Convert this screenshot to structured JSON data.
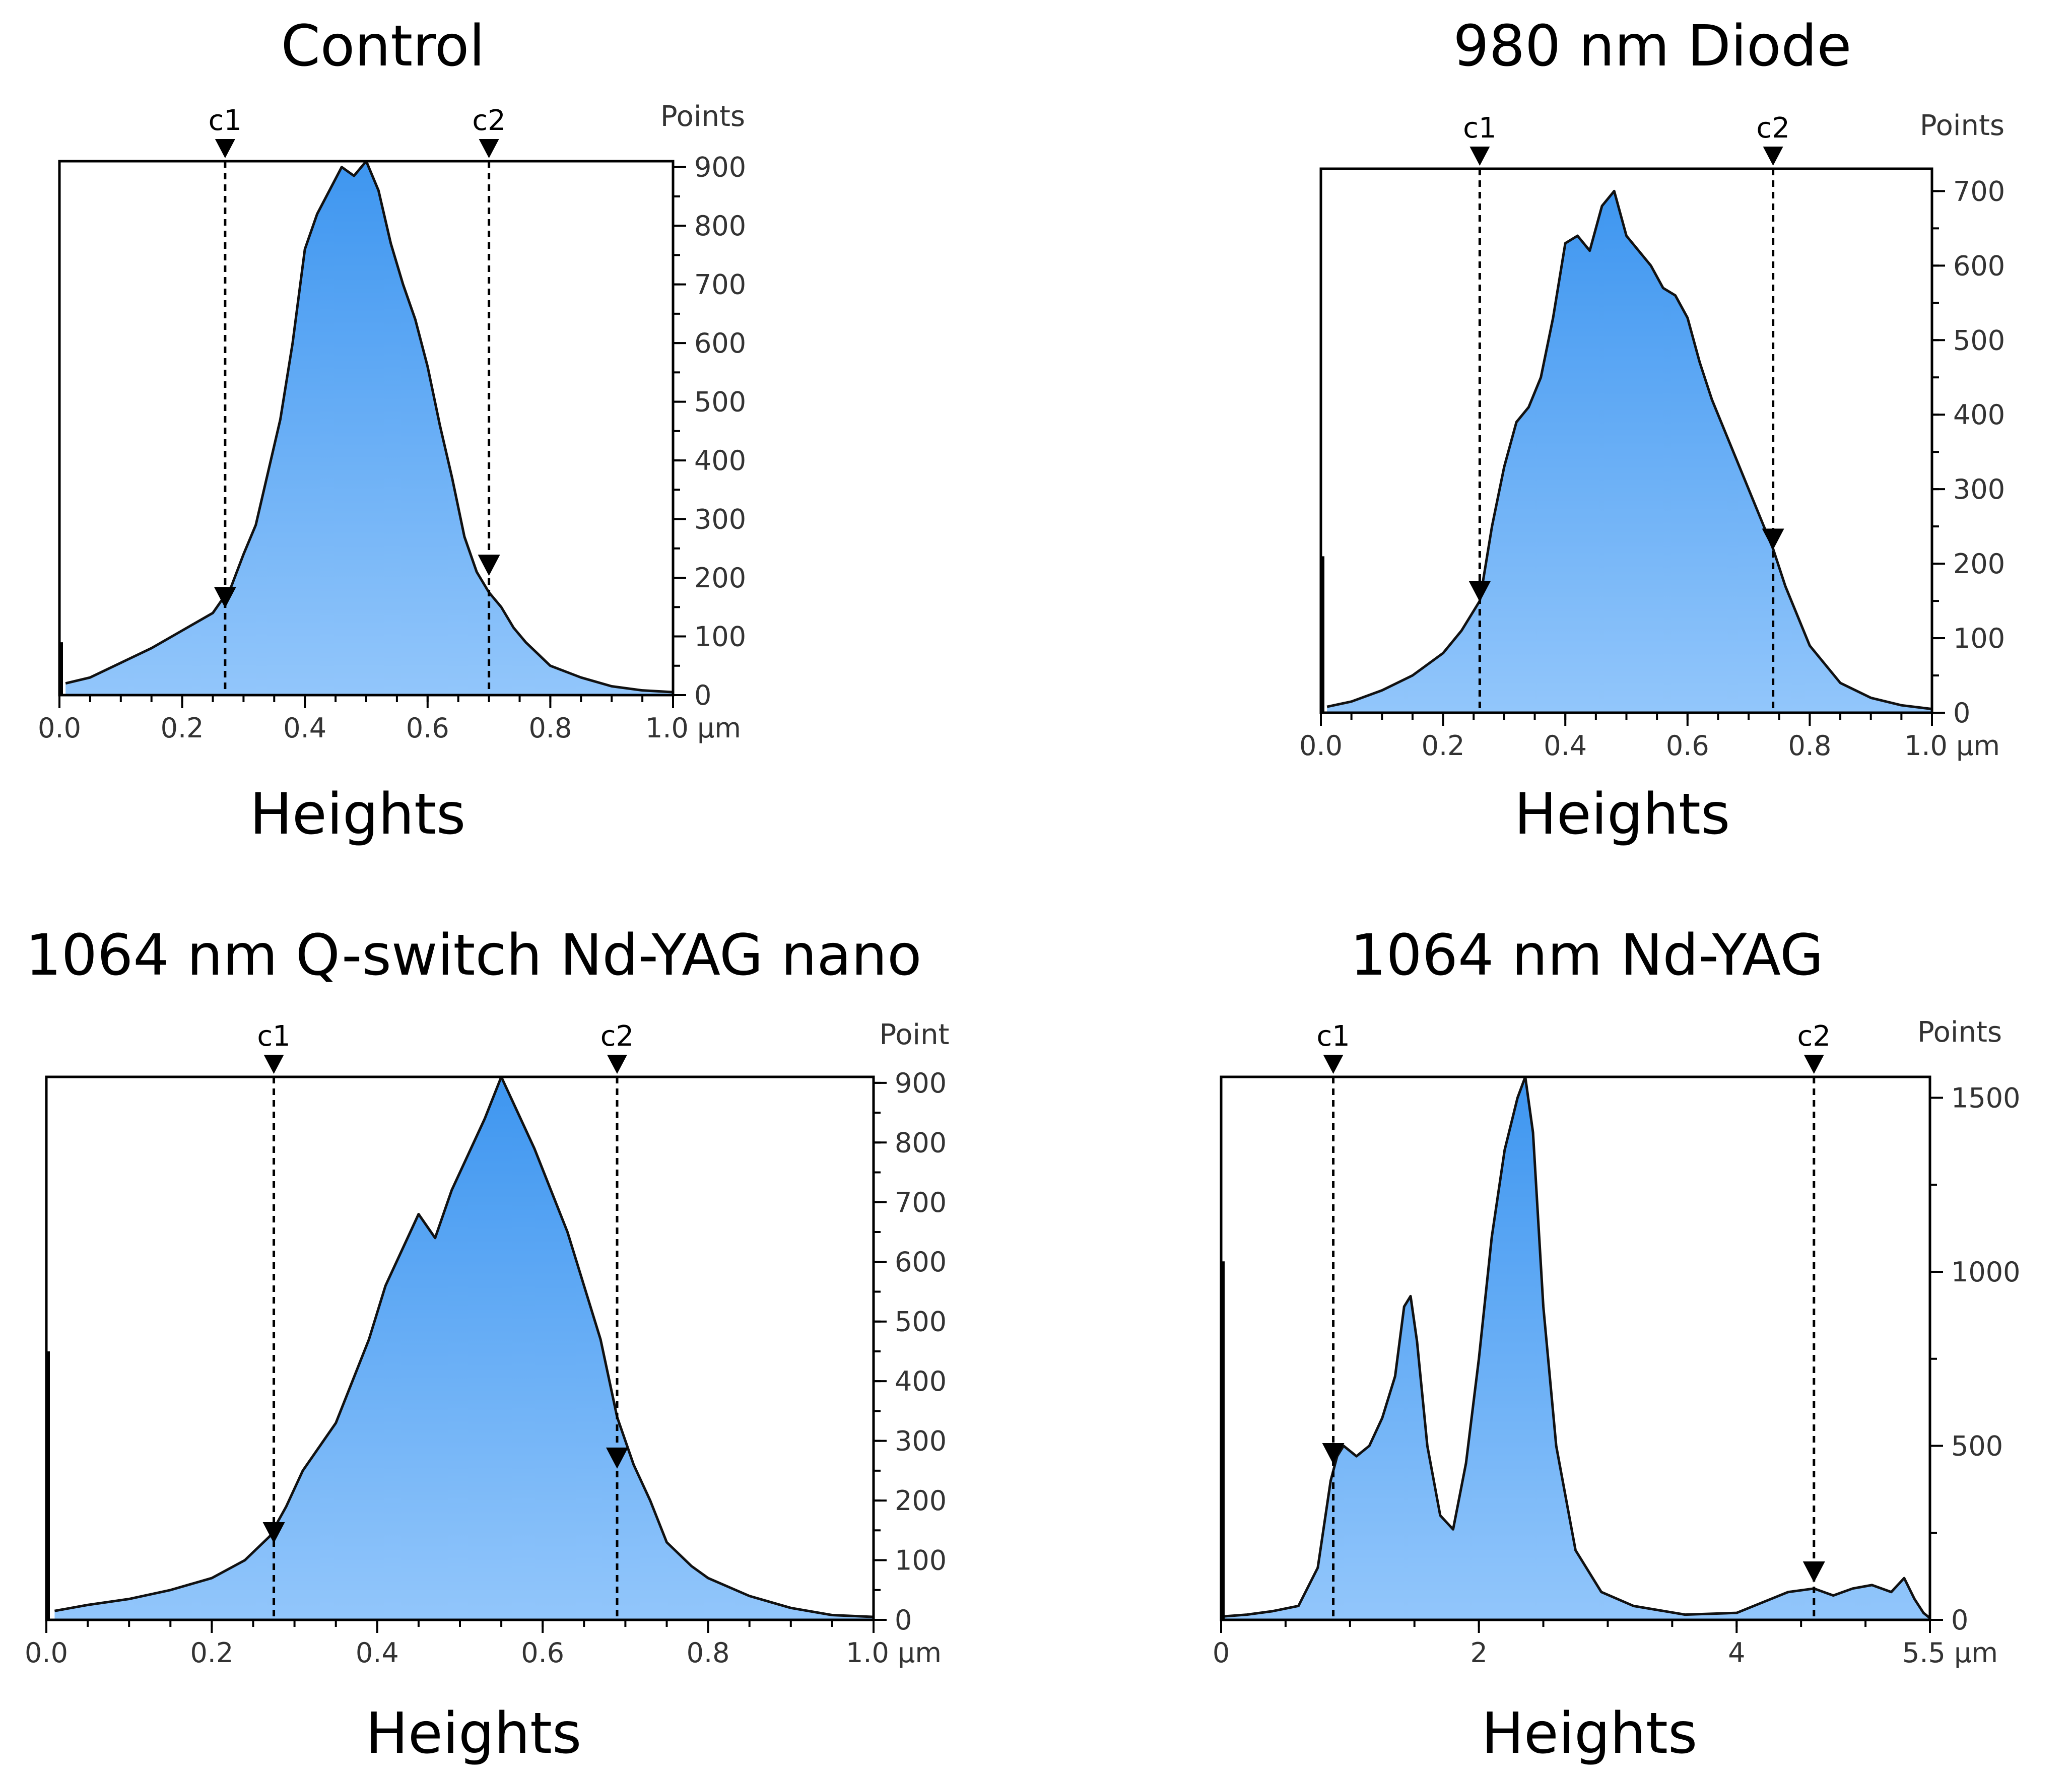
{
  "colors": {
    "fill_top": "#3e96f0",
    "fill_bottom": "#92c6fb",
    "line": "#111111"
  },
  "chart_data": [
    {
      "type": "area",
      "title": "Control",
      "xlabel": "Heights",
      "ylabel": "Points",
      "x_unit": "µm",
      "xlim": [
        0,
        1.0
      ],
      "ylim": [
        0,
        910
      ],
      "x_ticks": [
        "0.0",
        "0.2",
        "0.4",
        "0.6",
        "0.8",
        "1.0"
      ],
      "y_ticks": [
        "0",
        "100",
        "200",
        "300",
        "400",
        "500",
        "600",
        "700",
        "800",
        "900"
      ],
      "spike": [
        0.0,
        90
      ],
      "x": [
        0.01,
        0.05,
        0.1,
        0.15,
        0.2,
        0.25,
        0.28,
        0.3,
        0.32,
        0.34,
        0.36,
        0.38,
        0.4,
        0.42,
        0.44,
        0.46,
        0.48,
        0.5,
        0.52,
        0.54,
        0.56,
        0.58,
        0.6,
        0.62,
        0.64,
        0.66,
        0.68,
        0.7,
        0.72,
        0.74,
        0.76,
        0.78,
        0.8,
        0.85,
        0.9,
        0.95,
        1.0
      ],
      "values": [
        20,
        30,
        55,
        80,
        110,
        140,
        185,
        240,
        290,
        380,
        470,
        600,
        760,
        820,
        860,
        900,
        885,
        910,
        860,
        770,
        700,
        640,
        560,
        460,
        370,
        270,
        210,
        175,
        150,
        115,
        90,
        70,
        50,
        30,
        15,
        8,
        5
      ],
      "cursors": [
        {
          "label": "c1",
          "x": 0.27,
          "y": 150
        },
        {
          "label": "c2",
          "x": 0.7,
          "y": 205
        }
      ]
    },
    {
      "type": "area",
      "title": "980 nm Diode",
      "xlabel": "Heights",
      "ylabel": "Points",
      "x_unit": "µm",
      "xlim": [
        0,
        1.0
      ],
      "ylim": [
        0,
        730
      ],
      "x_ticks": [
        "0.0",
        "0.2",
        "0.4",
        "0.6",
        "0.8",
        "1.0"
      ],
      "y_ticks": [
        "0",
        "100",
        "200",
        "300",
        "400",
        "500",
        "600",
        "700"
      ],
      "spike": [
        0.0,
        210
      ],
      "x": [
        0.01,
        0.05,
        0.1,
        0.15,
        0.2,
        0.23,
        0.26,
        0.28,
        0.3,
        0.32,
        0.34,
        0.36,
        0.38,
        0.4,
        0.42,
        0.44,
        0.46,
        0.48,
        0.5,
        0.52,
        0.54,
        0.56,
        0.58,
        0.6,
        0.62,
        0.64,
        0.66,
        0.68,
        0.7,
        0.72,
        0.74,
        0.76,
        0.78,
        0.8,
        0.85,
        0.9,
        0.95,
        1.0
      ],
      "values": [
        8,
        15,
        30,
        50,
        80,
        110,
        150,
        250,
        330,
        390,
        410,
        450,
        530,
        630,
        640,
        620,
        680,
        700,
        640,
        620,
        600,
        570,
        560,
        530,
        470,
        420,
        380,
        340,
        300,
        260,
        220,
        170,
        130,
        90,
        40,
        20,
        10,
        5
      ],
      "cursors": [
        {
          "label": "c1",
          "x": 0.26,
          "y": 150
        },
        {
          "label": "c2",
          "x": 0.74,
          "y": 220
        }
      ]
    },
    {
      "type": "area",
      "title": "1064 nm Q-switch Nd-YAG nano",
      "xlabel": "Heights",
      "ylabel": "Point",
      "x_unit": "µm",
      "xlim": [
        0,
        1.0
      ],
      "ylim": [
        0,
        910
      ],
      "x_ticks": [
        "0.0",
        "0.2",
        "0.4",
        "0.6",
        "0.8",
        "1.0"
      ],
      "y_ticks": [
        "0",
        "100",
        "200",
        "300",
        "400",
        "500",
        "600",
        "700",
        "800",
        "900"
      ],
      "spike": [
        0.0,
        450
      ],
      "x": [
        0.01,
        0.05,
        0.1,
        0.15,
        0.2,
        0.24,
        0.27,
        0.29,
        0.31,
        0.33,
        0.35,
        0.37,
        0.39,
        0.41,
        0.43,
        0.45,
        0.47,
        0.49,
        0.51,
        0.53,
        0.55,
        0.57,
        0.59,
        0.61,
        0.63,
        0.65,
        0.67,
        0.69,
        0.71,
        0.73,
        0.75,
        0.78,
        0.8,
        0.85,
        0.9,
        0.95,
        1.0
      ],
      "values": [
        15,
        25,
        35,
        50,
        70,
        100,
        140,
        190,
        250,
        290,
        330,
        400,
        470,
        560,
        620,
        680,
        640,
        720,
        780,
        840,
        910,
        850,
        790,
        720,
        650,
        560,
        470,
        340,
        260,
        200,
        130,
        90,
        70,
        40,
        20,
        8,
        5
      ],
      "cursors": [
        {
          "label": "c1",
          "x": 0.275,
          "y": 130
        },
        {
          "label": "c2",
          "x": 0.69,
          "y": 255
        }
      ]
    },
    {
      "type": "area",
      "title": "1064 nm Nd-YAG",
      "xlabel": "Heights",
      "ylabel": "Points",
      "x_unit": "µm",
      "xlim": [
        0,
        5.5
      ],
      "ylim": [
        0,
        1560
      ],
      "x_ticks": [
        "0",
        "2",
        "4",
        "5.5"
      ],
      "x_tick_values": [
        0,
        2,
        4,
        5.5
      ],
      "y_ticks": [
        "0",
        "500",
        "1000",
        "1500"
      ],
      "spike": [
        0.0,
        1030
      ],
      "x": [
        0.02,
        0.2,
        0.4,
        0.6,
        0.75,
        0.85,
        0.9,
        0.95,
        1.05,
        1.15,
        1.25,
        1.35,
        1.42,
        1.47,
        1.52,
        1.6,
        1.7,
        1.8,
        1.9,
        2.0,
        2.1,
        2.2,
        2.3,
        2.36,
        2.42,
        2.5,
        2.6,
        2.75,
        2.95,
        3.2,
        3.6,
        4.0,
        4.2,
        4.4,
        4.6,
        4.75,
        4.9,
        5.05,
        5.2,
        5.3,
        5.38,
        5.45,
        5.5
      ],
      "values": [
        10,
        15,
        25,
        40,
        150,
        400,
        470,
        500,
        470,
        500,
        580,
        700,
        900,
        930,
        800,
        500,
        300,
        260,
        450,
        750,
        1100,
        1350,
        1500,
        1560,
        1400,
        900,
        500,
        200,
        80,
        40,
        15,
        20,
        50,
        80,
        90,
        70,
        90,
        100,
        80,
        120,
        60,
        20,
        5
      ],
      "cursors": [
        {
          "label": "c1",
          "x": 0.87,
          "y": 450
        },
        {
          "label": "c2",
          "x": 4.6,
          "y": 110
        }
      ]
    }
  ]
}
